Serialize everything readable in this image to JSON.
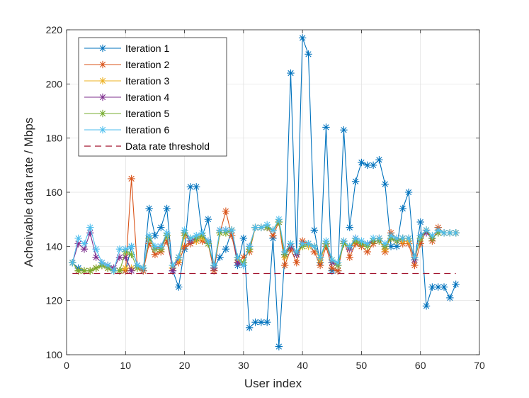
{
  "chart_data": {
    "type": "line",
    "title": "",
    "xlabel": "User index",
    "ylabel": "Acheivable data rate / Mbps",
    "xlim": [
      0,
      70
    ],
    "ylim": [
      100,
      220
    ],
    "xticks": [
      0,
      10,
      20,
      30,
      40,
      50,
      60,
      70
    ],
    "yticks": [
      100,
      120,
      140,
      160,
      180,
      200,
      220
    ],
    "grid": true,
    "legend_position": "top-left",
    "x": [
      1,
      2,
      3,
      4,
      5,
      6,
      7,
      8,
      9,
      10,
      11,
      12,
      13,
      14,
      15,
      16,
      17,
      18,
      19,
      20,
      21,
      22,
      23,
      24,
      25,
      26,
      27,
      28,
      29,
      30,
      31,
      32,
      33,
      34,
      35,
      36,
      37,
      38,
      39,
      40,
      41,
      42,
      43,
      44,
      45,
      46,
      47,
      48,
      49,
      50,
      51,
      52,
      53,
      54,
      55,
      56,
      57,
      58,
      59,
      60,
      61,
      62,
      63,
      64,
      65,
      66
    ],
    "series": [
      {
        "name": "Iteration 1",
        "color": "#0072BD",
        "values": [
          134,
          132,
          131,
          131,
          132,
          133,
          132,
          131,
          131,
          131,
          140,
          133,
          131,
          154,
          144,
          147,
          154,
          131,
          125,
          139,
          162,
          162,
          144,
          150,
          132,
          136,
          139,
          146,
          133,
          143,
          110,
          112,
          112,
          112,
          143,
          103,
          137,
          204,
          137,
          217,
          211,
          146,
          134,
          184,
          131,
          131,
          183,
          147,
          164,
          171,
          170,
          170,
          172,
          163,
          140,
          140,
          154,
          160,
          135,
          149,
          118,
          125,
          125,
          125,
          121,
          126
        ]
      },
      {
        "name": "Iteration 2",
        "color": "#D95319",
        "values": [
          134,
          131,
          131,
          131,
          132,
          133,
          132,
          131,
          131,
          131,
          165,
          132,
          131,
          141,
          137,
          138,
          142,
          132,
          134,
          140,
          141,
          142,
          142,
          141,
          131,
          145,
          153,
          144,
          134,
          136,
          138,
          147,
          147,
          147,
          144,
          149,
          133,
          139,
          134,
          142,
          141,
          138,
          133,
          140,
          132,
          131,
          142,
          136,
          141,
          140,
          138,
          141,
          143,
          138,
          145,
          143,
          141,
          141,
          133,
          141,
          146,
          142,
          147,
          145,
          145,
          145
        ]
      },
      {
        "name": "Iteration 3",
        "color": "#EDB120",
        "values": [
          134,
          131,
          131,
          131,
          132,
          133,
          132,
          131,
          131,
          132,
          132,
          132,
          132,
          143,
          139,
          139,
          144,
          132,
          135,
          144,
          142,
          142,
          143,
          142,
          132,
          145,
          145,
          146,
          135,
          134,
          139,
          147,
          147,
          147,
          146,
          149,
          136,
          140,
          137,
          140,
          140,
          140,
          135,
          141,
          134,
          133,
          141,
          139,
          142,
          141,
          140,
          142,
          142,
          139,
          143,
          142,
          142,
          142,
          135,
          143,
          145,
          143,
          145,
          145,
          145,
          145
        ]
      },
      {
        "name": "Iteration 4",
        "color": "#7E2F8E",
        "values": [
          134,
          141,
          139,
          145,
          136,
          134,
          133,
          132,
          136,
          136,
          131,
          133,
          132,
          143,
          139,
          140,
          144,
          131,
          136,
          145,
          142,
          143,
          144,
          142,
          132,
          146,
          146,
          146,
          134,
          133,
          140,
          147,
          147,
          147,
          146,
          149,
          137,
          140,
          137,
          141,
          141,
          140,
          136,
          141,
          134,
          133,
          141,
          139,
          143,
          141,
          141,
          142,
          142,
          140,
          143,
          142,
          143,
          143,
          135,
          144,
          145,
          143,
          145,
          145,
          145,
          145
        ]
      },
      {
        "name": "Iteration 5",
        "color": "#77AC30",
        "values": [
          134,
          131,
          131,
          131,
          132,
          133,
          132,
          131,
          131,
          138,
          137,
          132,
          132,
          143,
          139,
          139,
          144,
          133,
          136,
          145,
          143,
          143,
          144,
          141,
          133,
          145,
          145,
          146,
          136,
          134,
          139,
          147,
          147,
          147,
          146,
          149,
          137,
          141,
          138,
          140,
          141,
          140,
          136,
          141,
          135,
          133,
          141,
          140,
          142,
          141,
          140,
          142,
          142,
          140,
          143,
          142,
          143,
          143,
          136,
          143,
          146,
          143,
          145,
          145,
          145,
          145
        ]
      },
      {
        "name": "Iteration 6",
        "color": "#4DBEEE",
        "values": [
          134,
          143,
          141,
          147,
          139,
          134,
          133,
          131,
          139,
          139,
          140,
          133,
          132,
          144,
          140,
          140,
          145,
          133,
          136,
          146,
          143,
          144,
          145,
          142,
          133,
          146,
          146,
          146,
          136,
          133,
          140,
          147,
          147,
          148,
          146,
          150,
          138,
          141,
          138,
          141,
          141,
          140,
          136,
          142,
          135,
          134,
          142,
          140,
          143,
          142,
          141,
          143,
          143,
          141,
          144,
          143,
          143,
          143,
          136,
          144,
          146,
          144,
          146,
          145,
          145,
          145
        ]
      },
      {
        "name": "Data rate threshold",
        "color": "#A2142F",
        "dashed": true,
        "values_xy": [
          [
            1,
            130
          ],
          [
            66,
            130
          ]
        ]
      }
    ]
  }
}
